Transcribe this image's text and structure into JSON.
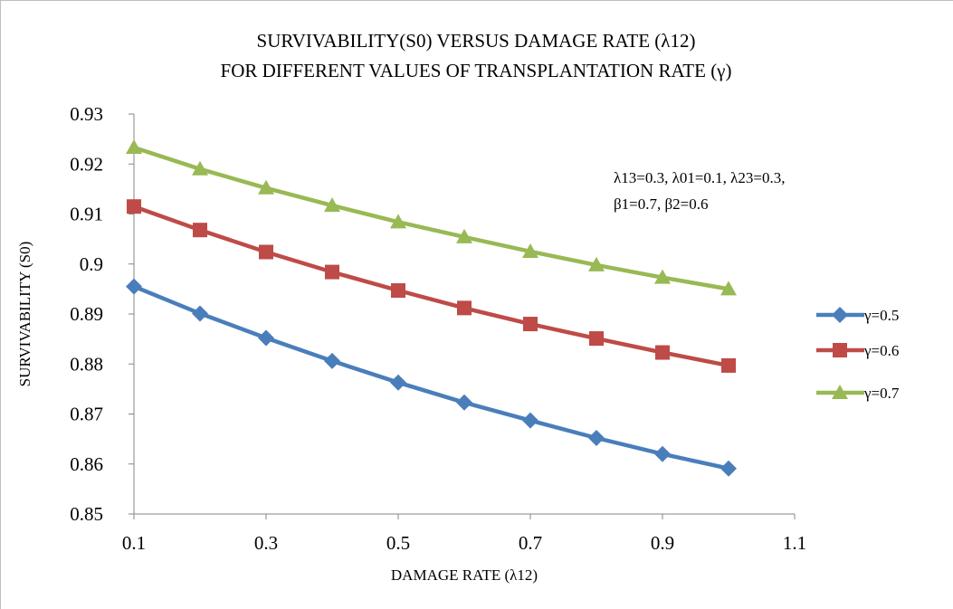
{
  "chart_data": {
    "type": "line",
    "title_lines": [
      "SURVIVABILITY(S0) VERSUS DAMAGE RATE (λ12)",
      "FOR DIFFERENT VALUES OF TRANSPLANTATION RATE (γ)"
    ],
    "xlabel": "DAMAGE RATE (λ12)",
    "ylabel": "SURVIVABILITY (S0)",
    "xlim": [
      0.1,
      1.1
    ],
    "ylim": [
      0.85,
      0.93
    ],
    "x_ticks": [
      "0.1",
      "0.3",
      "0.5",
      "0.7",
      "0.9",
      "1.1"
    ],
    "y_ticks": [
      "0.85",
      "0.86",
      "0.87",
      "0.88",
      "0.89",
      "0.9",
      "0.91",
      "0.92",
      "0.93"
    ],
    "x": [
      0.1,
      0.2,
      0.3,
      0.4,
      0.5,
      0.6,
      0.7,
      0.8,
      0.9,
      1.0
    ],
    "series": [
      {
        "name": "γ=0.5",
        "color": "#4a7ebb",
        "marker": "diamond",
        "values": [
          0.8955,
          0.8901,
          0.8852,
          0.8806,
          0.8763,
          0.8723,
          0.8687,
          0.8652,
          0.862,
          0.8591
        ]
      },
      {
        "name": "γ=0.6",
        "color": "#be4b48",
        "marker": "square",
        "values": [
          0.9115,
          0.9068,
          0.9024,
          0.8984,
          0.8947,
          0.8912,
          0.888,
          0.8851,
          0.8823,
          0.8797
        ]
      },
      {
        "name": "γ=0.7",
        "color": "#98b954",
        "marker": "triangle",
        "values": [
          0.9233,
          0.919,
          0.9152,
          0.9117,
          0.9084,
          0.9054,
          0.9025,
          0.8998,
          0.8973,
          0.895
        ]
      }
    ],
    "annotation_lines": [
      "λ13=0.3, λ01=0.1, λ23=0.3,",
      "β1=0.7, β2=0.6"
    ],
    "grid": false,
    "legend_position": "right"
  }
}
